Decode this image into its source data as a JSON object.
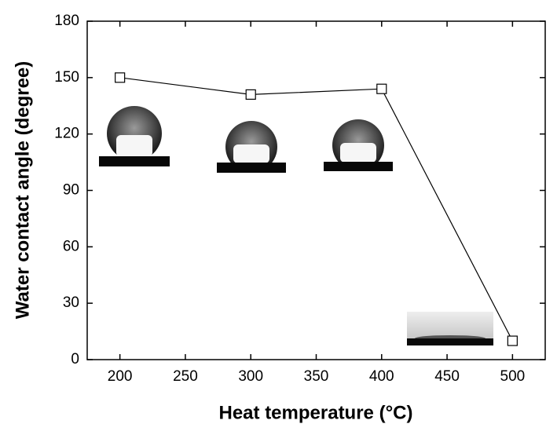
{
  "chart_data": {
    "type": "line",
    "x_label": "Heat temperature (°C)",
    "y_label": "Water contact angle (degree)",
    "x": [
      200,
      300,
      400,
      500
    ],
    "series": [
      {
        "color": "#000000",
        "values": [
          150,
          141,
          144,
          10
        ]
      }
    ],
    "xlim": [
      175,
      525
    ],
    "xticks": [
      200,
      250,
      300,
      350,
      400,
      450,
      500
    ],
    "ylim": [
      0,
      180
    ],
    "yticks": [
      0,
      30,
      60,
      90,
      120,
      150,
      180
    ],
    "marker": "open-square",
    "grid": false
  }
}
